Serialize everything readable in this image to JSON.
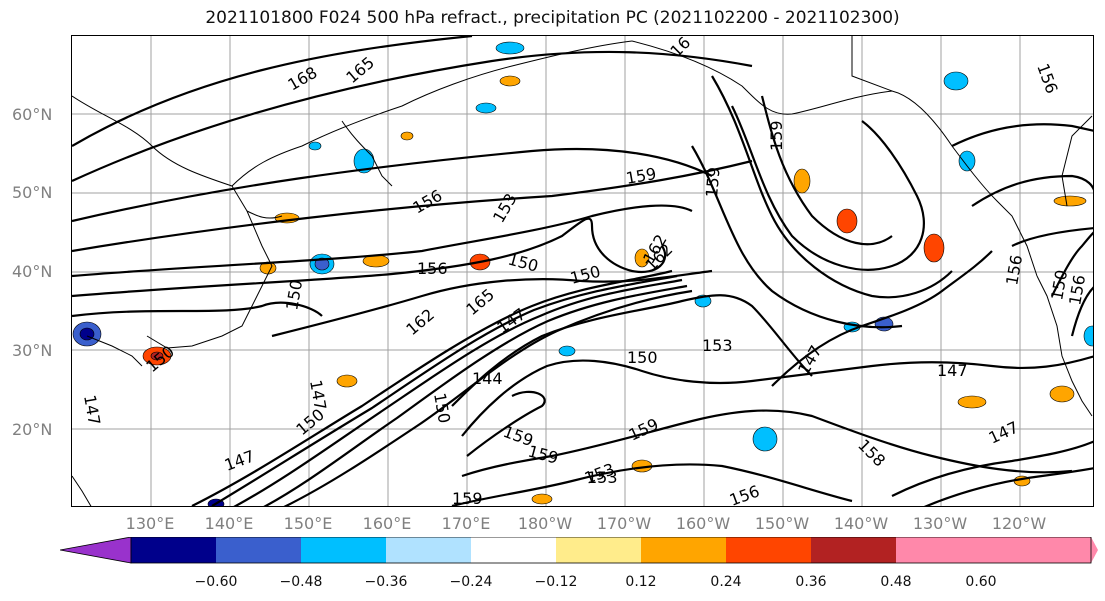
{
  "title": "2021101800 F024 500 hPa refract., precipitation PC (2021102200 - 2021102300)",
  "lat_labels": [
    "60°N",
    "50°N",
    "40°N",
    "30°N",
    "20°N"
  ],
  "lon_labels": [
    "130°E",
    "140°E",
    "150°E",
    "160°E",
    "170°E",
    "180°W",
    "170°W",
    "160°W",
    "150°W",
    "140°W",
    "130°W",
    "120°W"
  ],
  "contour_labels": [
    "168",
    "165",
    "16",
    "159",
    "156",
    "153",
    "150",
    "156",
    "150",
    "159",
    "159",
    "162",
    "147",
    "156",
    "156",
    "147",
    "150",
    "165",
    "162",
    "147",
    "150",
    "153",
    "147",
    "150",
    "150",
    "144",
    "147",
    "150",
    "159",
    "159",
    "153",
    "156",
    "147",
    "150",
    "158",
    "147",
    "159",
    "156",
    "153",
    "162",
    "159"
  ],
  "colorbar": {
    "colors": [
      "#9932cc",
      "#00008b",
      "#3a5fcd",
      "#00bfff",
      "#b0e2ff",
      "#ffffff",
      "#ffec8b",
      "#ffa500",
      "#ff4500",
      "#b22222",
      "#ff88aa"
    ],
    "ticks": [
      "−0.60",
      "−0.48",
      "−0.36",
      "−0.24",
      "−0.12",
      "0.12",
      "0.24",
      "0.36",
      "0.48",
      "0.60"
    ]
  },
  "colors": {
    "grid": "#a0a0a0",
    "contour": "#000000",
    "axis_label": "#808080"
  }
}
